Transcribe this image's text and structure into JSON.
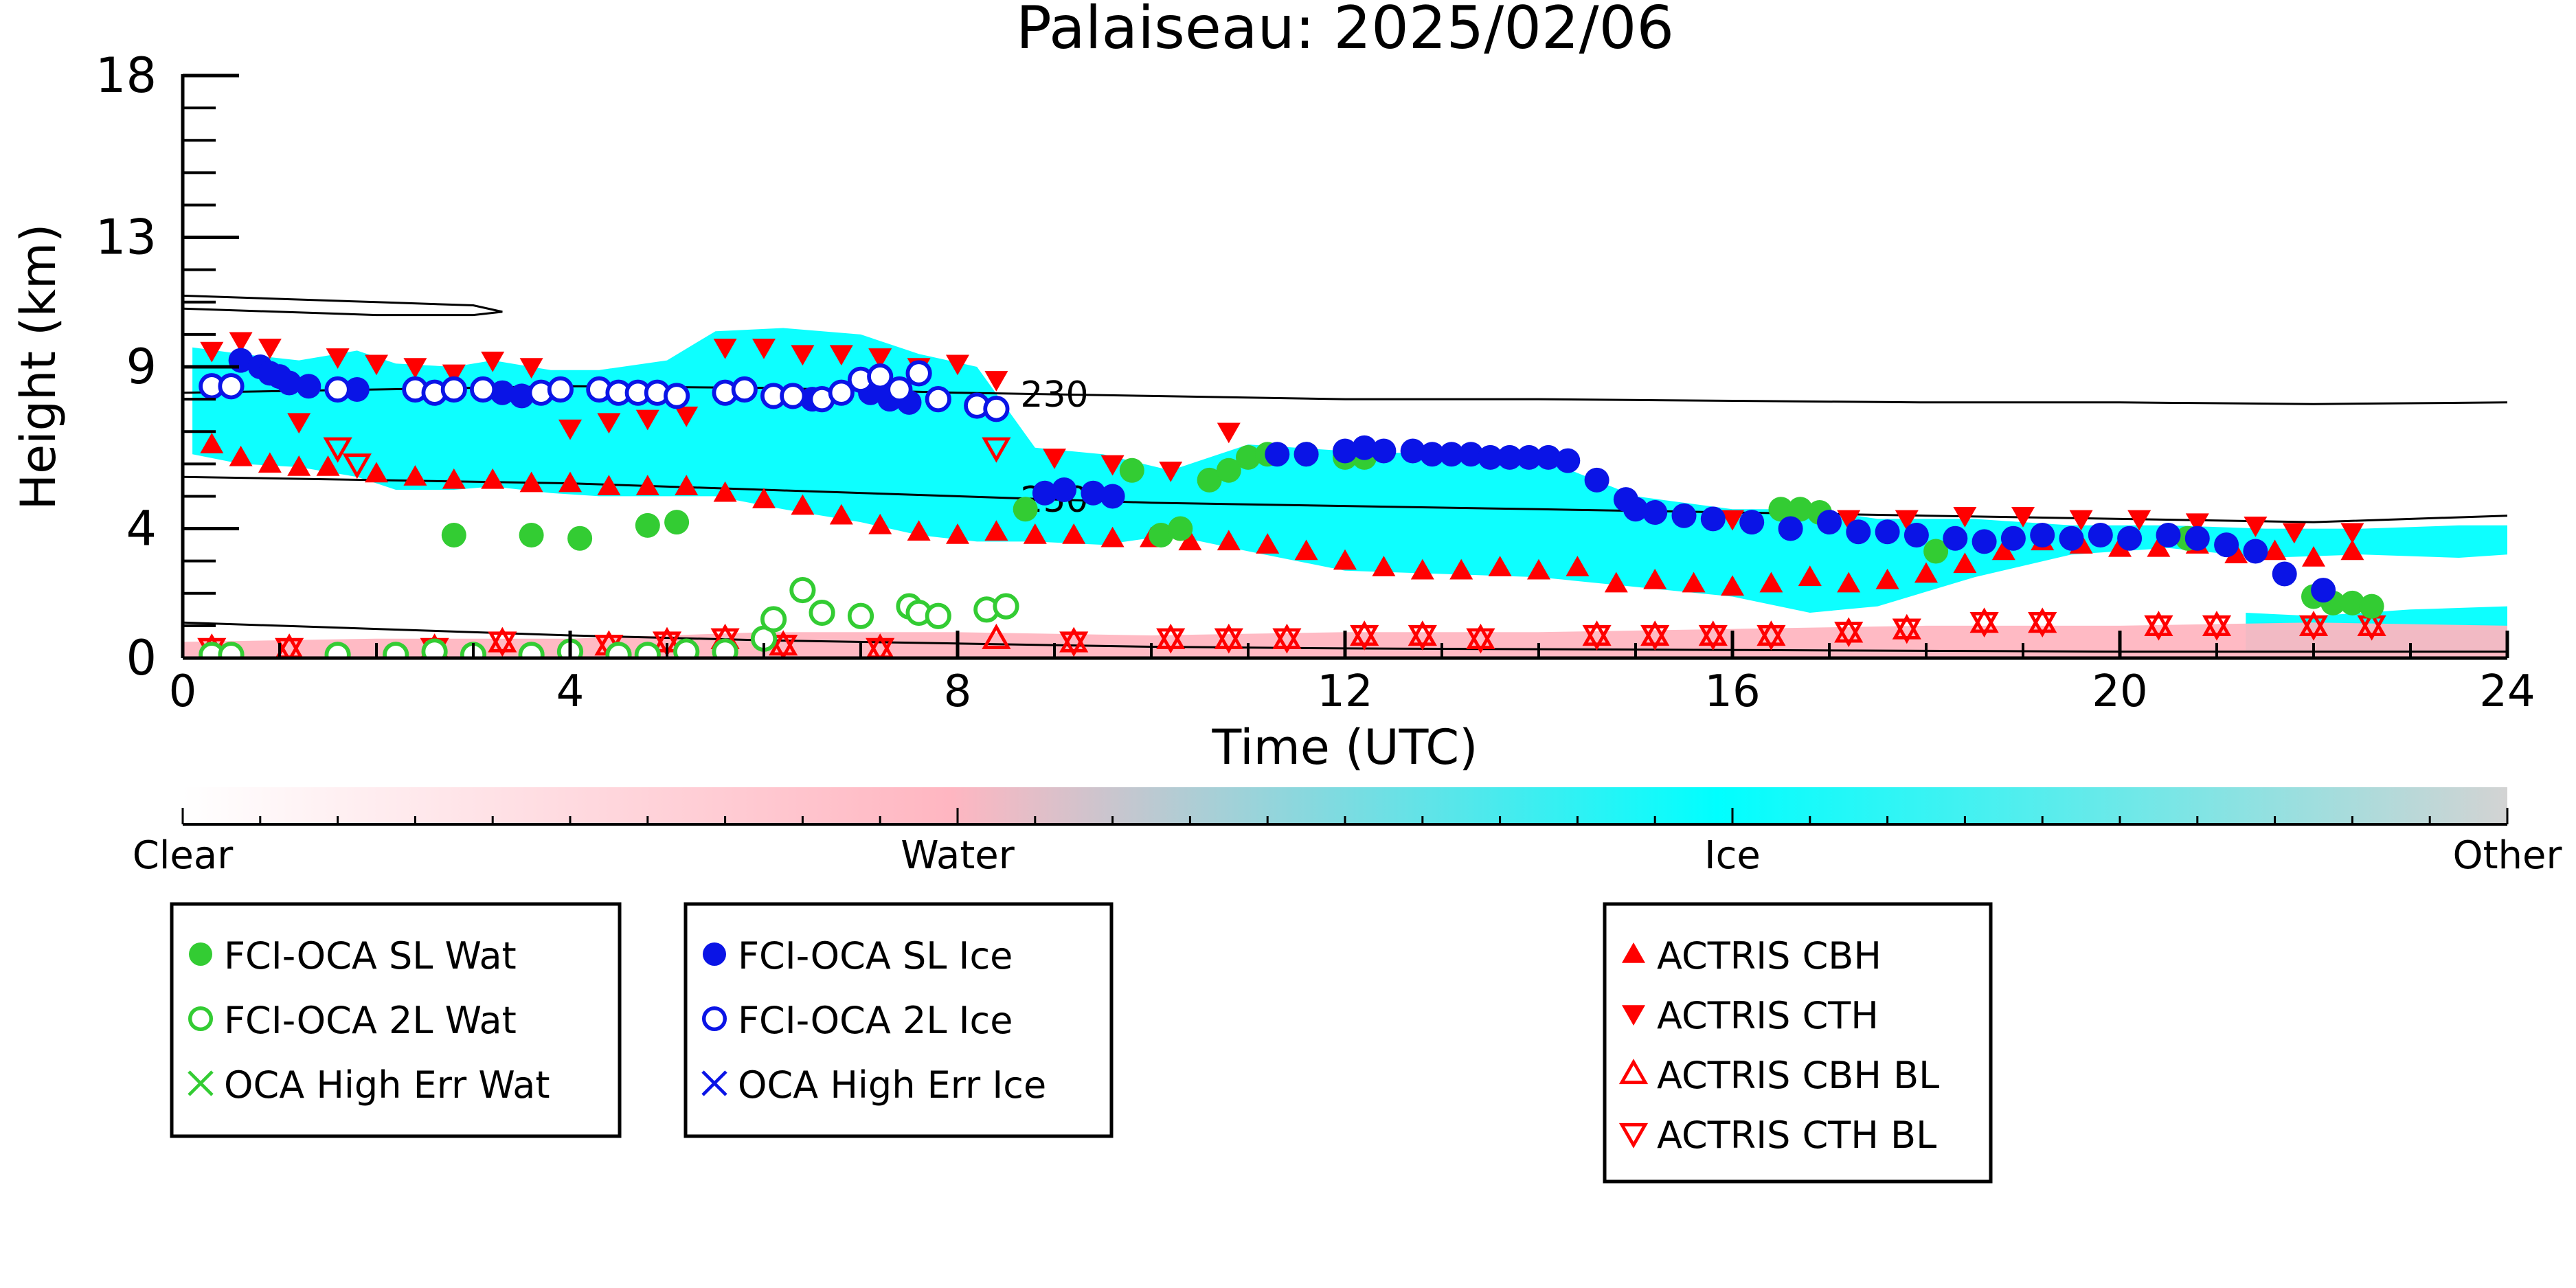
{
  "chart_data": {
    "type": "scatter",
    "title": "Palaiseau: 2025/02/06",
    "xlabel": "Time (UTC)",
    "ylabel": "Height (km)",
    "xlim": [
      0,
      24
    ],
    "ylim": [
      0,
      18
    ],
    "x_ticks": [
      0,
      4,
      8,
      12,
      16,
      20,
      24
    ],
    "y_ticks": [
      0,
      4,
      9,
      13,
      18
    ],
    "grid": false,
    "colorbar": {
      "labels": [
        "Clear",
        "Water",
        "Ice",
        "Other"
      ],
      "colors": [
        "#ffffff",
        "#ffb6c1",
        "#00ffff",
        "#d3d3d3"
      ]
    },
    "contours": [
      {
        "label": "230",
        "x": [
          0,
          2,
          4,
          6,
          8,
          10,
          12,
          14,
          16,
          18,
          20,
          22,
          24
        ],
        "y": [
          8.2,
          8.3,
          8.4,
          8.35,
          8.2,
          8.1,
          8.0,
          8.0,
          7.95,
          7.9,
          7.9,
          7.85,
          7.9
        ]
      },
      {
        "label": "250",
        "x": [
          0,
          2,
          4,
          6,
          8,
          10,
          12,
          14,
          16,
          18,
          20,
          22,
          24
        ],
        "y": [
          5.6,
          5.5,
          5.4,
          5.2,
          5.0,
          4.8,
          4.7,
          4.6,
          4.5,
          4.4,
          4.3,
          4.2,
          4.4
        ]
      },
      {
        "label": "",
        "x": [
          0,
          1,
          2,
          3,
          3.3,
          3,
          2,
          1,
          0
        ],
        "y": [
          11.2,
          11.1,
          11.0,
          10.9,
          10.7,
          10.6,
          10.6,
          10.7,
          10.8
        ]
      },
      {
        "label": "",
        "x": [
          0,
          2,
          4,
          6,
          8,
          10,
          12,
          16,
          20,
          24
        ],
        "y": [
          1.1,
          0.9,
          0.7,
          0.55,
          0.45,
          0.35,
          0.3,
          0.25,
          0.2,
          0.2
        ]
      }
    ],
    "cloud_regions": [
      {
        "phase": "Ice",
        "x": [
          0.1,
          0.6,
          1.2,
          1.8,
          2.2,
          2.8,
          3.2,
          3.8,
          4.3,
          5.0,
          5.5,
          6.2,
          7.0,
          7.6,
          8.2,
          8.8,
          9.5,
          10.2,
          11.0,
          12.0,
          13.0,
          14.0,
          15.0,
          16.0,
          16.8,
          17.5,
          18.5,
          19.5,
          20.5,
          21.5,
          22.5,
          23.5,
          24.0
        ],
        "top": [
          9.6,
          9.4,
          9.2,
          9.5,
          9.1,
          9.0,
          9.2,
          8.9,
          8.9,
          9.2,
          10.1,
          10.2,
          10.0,
          9.4,
          9.0,
          6.5,
          6.3,
          5.8,
          6.6,
          6.4,
          6.3,
          6.2,
          5.0,
          4.6,
          4.6,
          4.3,
          4.3,
          4.1,
          4.1,
          4.0,
          4.0,
          4.1,
          4.1
        ],
        "bottom": [
          6.3,
          6.0,
          5.9,
          5.6,
          5.2,
          5.2,
          5.3,
          5.1,
          5.0,
          5.0,
          5.0,
          4.6,
          4.2,
          3.8,
          3.6,
          3.6,
          3.5,
          3.8,
          3.3,
          2.7,
          2.6,
          2.5,
          2.2,
          1.9,
          1.4,
          1.6,
          2.5,
          3.2,
          3.4,
          3.1,
          3.2,
          3.1,
          3.2
        ]
      },
      {
        "phase": "Ice",
        "x": [
          21.3,
          22.0,
          23.0,
          24.0
        ],
        "top": [
          1.4,
          1.3,
          1.5,
          1.6
        ],
        "bottom": [
          0.2,
          0.2,
          0.2,
          0.2
        ]
      },
      {
        "phase": "Water",
        "x": [
          0.0,
          2.0,
          4.0,
          6.0,
          8.0,
          10.0,
          12.0,
          14.0,
          16.0,
          18.0,
          20.0,
          22.0,
          24.0
        ],
        "top": [
          0.5,
          0.6,
          0.6,
          0.8,
          0.8,
          0.7,
          0.8,
          0.8,
          0.9,
          1.0,
          1.0,
          1.1,
          1.0
        ],
        "bottom": [
          0.0,
          0.0,
          0.0,
          0.0,
          0.0,
          0.0,
          0.0,
          0.0,
          0.0,
          0.0,
          0.0,
          0.0,
          0.0
        ]
      }
    ],
    "series": [
      {
        "name": "FCI-OCA SL Wat",
        "marker": "circle-filled",
        "color": "#33cc33",
        "x": [
          2.8,
          3.6,
          4.1,
          4.8,
          5.1,
          8.7,
          9.8,
          10.1,
          10.3,
          10.6,
          10.8,
          11.0,
          11.2,
          11.6,
          12.0,
          12.2,
          16.5,
          16.7,
          16.9,
          18.1,
          20.7,
          22.0,
          22.2,
          22.4,
          22.6
        ],
        "y": [
          3.8,
          3.8,
          3.7,
          4.1,
          4.2,
          4.6,
          5.8,
          3.8,
          4.0,
          5.5,
          5.8,
          6.2,
          6.3,
          6.3,
          6.2,
          6.2,
          4.6,
          4.6,
          4.5,
          3.3,
          3.7,
          1.9,
          1.7,
          1.7,
          1.6
        ]
      },
      {
        "name": "FCI-OCA 2L Wat",
        "marker": "circle-open",
        "color": "#33cc33",
        "x": [
          0.3,
          0.5,
          1.6,
          2.2,
          2.6,
          3.0,
          3.6,
          4.0,
          4.5,
          4.8,
          5.2,
          5.6,
          6.0,
          6.1,
          6.4,
          6.6,
          7.0,
          7.5,
          7.6,
          7.8,
          8.3,
          8.5
        ],
        "y": [
          0.1,
          0.1,
          0.1,
          0.1,
          0.2,
          0.1,
          0.1,
          0.2,
          0.1,
          0.1,
          0.2,
          0.2,
          0.6,
          1.2,
          2.1,
          1.4,
          1.3,
          1.6,
          1.4,
          1.3,
          1.5,
          1.6
        ]
      },
      {
        "name": "OCA High Err Wat",
        "marker": "x",
        "color": "#33cc33",
        "x": [],
        "y": []
      },
      {
        "name": "FCI-OCA SL Ice",
        "marker": "circle-filled",
        "color": "#0a14e6",
        "x": [
          0.6,
          0.8,
          0.9,
          1.0,
          1.1,
          1.3,
          1.8,
          3.3,
          3.5,
          5.6,
          6.5,
          6.8,
          7.1,
          7.3,
          7.5,
          8.9,
          9.1,
          9.4,
          9.6,
          11.3,
          11.6,
          12.0,
          12.2,
          12.4,
          12.7,
          12.9,
          13.1,
          13.3,
          13.5,
          13.7,
          13.9,
          14.1,
          14.3,
          14.6,
          14.9,
          15.0,
          15.2,
          15.5,
          15.8,
          16.2,
          16.6,
          17.0,
          17.3,
          17.6,
          17.9,
          18.3,
          18.6,
          18.9,
          19.2,
          19.5,
          19.8,
          20.1,
          20.5,
          20.8,
          21.1,
          21.4,
          21.7,
          22.1
        ],
        "y": [
          9.2,
          9.0,
          8.8,
          8.7,
          8.5,
          8.4,
          8.3,
          8.2,
          8.1,
          8.2,
          8.0,
          8.2,
          8.2,
          8.0,
          7.9,
          5.1,
          5.2,
          5.1,
          5.0,
          6.3,
          6.3,
          6.4,
          6.5,
          6.4,
          6.4,
          6.3,
          6.3,
          6.3,
          6.2,
          6.2,
          6.2,
          6.2,
          6.1,
          5.5,
          4.9,
          4.6,
          4.5,
          4.4,
          4.3,
          4.2,
          4.0,
          4.2,
          3.9,
          3.9,
          3.8,
          3.7,
          3.6,
          3.7,
          3.8,
          3.7,
          3.8,
          3.7,
          3.8,
          3.7,
          3.5,
          3.3,
          2.6,
          2.1
        ]
      },
      {
        "name": "FCI-OCA 2L Ice",
        "marker": "circle-open",
        "color": "#0a14e6",
        "x": [
          0.3,
          0.5,
          1.6,
          2.4,
          2.6,
          2.8,
          3.1,
          3.7,
          3.9,
          4.3,
          4.5,
          4.7,
          4.9,
          5.1,
          5.6,
          5.8,
          6.1,
          6.3,
          6.6,
          6.8,
          7.0,
          7.2,
          7.4,
          7.6,
          7.8,
          8.2,
          8.4
        ],
        "y": [
          8.4,
          8.4,
          8.3,
          8.3,
          8.2,
          8.3,
          8.3,
          8.2,
          8.3,
          8.3,
          8.2,
          8.2,
          8.2,
          8.1,
          8.2,
          8.3,
          8.1,
          8.1,
          8.0,
          8.2,
          8.6,
          8.7,
          8.3,
          8.8,
          8.0,
          7.8,
          7.7
        ]
      },
      {
        "name": "OCA High Err Ice",
        "marker": "x",
        "color": "#0a14e6",
        "x": [],
        "y": []
      },
      {
        "name": "ACTRIS CBH",
        "marker": "triangle-up-filled",
        "color": "#ff0000",
        "x": [
          0.3,
          0.6,
          0.9,
          1.2,
          1.5,
          2.0,
          2.4,
          2.8,
          3.2,
          3.6,
          4.0,
          4.4,
          4.8,
          5.2,
          5.6,
          6.0,
          6.4,
          6.8,
          7.2,
          7.6,
          8.0,
          8.4,
          8.8,
          9.2,
          9.6,
          10.0,
          10.4,
          10.8,
          11.2,
          11.6,
          12.0,
          12.4,
          12.8,
          13.2,
          13.6,
          14.0,
          14.4,
          14.8,
          15.2,
          15.6,
          16.0,
          16.4,
          16.8,
          17.2,
          17.6,
          18.0,
          18.4,
          18.8,
          19.2,
          19.6,
          20.0,
          20.4,
          20.8,
          21.2,
          21.6,
          22.0,
          22.4
        ],
        "y": [
          6.6,
          6.2,
          6.0,
          5.9,
          5.9,
          5.7,
          5.6,
          5.5,
          5.5,
          5.4,
          5.4,
          5.3,
          5.3,
          5.3,
          5.1,
          4.9,
          4.7,
          4.4,
          4.1,
          3.9,
          3.8,
          3.9,
          3.8,
          3.8,
          3.7,
          3.7,
          3.6,
          3.6,
          3.5,
          3.3,
          3.0,
          2.8,
          2.7,
          2.7,
          2.8,
          2.7,
          2.8,
          2.3,
          2.4,
          2.3,
          2.2,
          2.3,
          2.5,
          2.3,
          2.4,
          2.6,
          2.9,
          3.3,
          3.6,
          3.5,
          3.4,
          3.4,
          3.5,
          3.2,
          3.3,
          3.1,
          3.3
        ]
      },
      {
        "name": "ACTRIS CTH",
        "marker": "triangle-down-filled",
        "color": "#ff0000",
        "x": [
          0.3,
          0.6,
          0.9,
          1.2,
          1.6,
          2.0,
          2.4,
          2.8,
          3.2,
          3.6,
          4.0,
          4.4,
          4.8,
          5.2,
          5.6,
          6.0,
          6.4,
          6.8,
          7.2,
          7.6,
          8.0,
          8.4,
          9.0,
          9.6,
          10.2,
          10.8,
          16.0,
          16.6,
          17.2,
          17.8,
          18.4,
          19.0,
          19.6,
          20.2,
          20.8,
          21.4,
          21.8,
          22.4
        ],
        "y": [
          9.5,
          9.8,
          9.6,
          7.3,
          9.3,
          9.1,
          9.0,
          8.8,
          9.2,
          9.0,
          7.1,
          7.3,
          7.4,
          7.5,
          9.6,
          9.6,
          9.4,
          9.4,
          9.3,
          9.0,
          9.1,
          8.6,
          6.2,
          6.0,
          5.8,
          7.0,
          4.3,
          4.2,
          4.3,
          4.3,
          4.4,
          4.4,
          4.3,
          4.3,
          4.2,
          4.1,
          3.9,
          3.9
        ]
      },
      {
        "name": "ACTRIS CBH BL",
        "marker": "triangle-up-open",
        "color": "#ff0000",
        "x": [
          0.3,
          1.1,
          2.6,
          3.3,
          4.4,
          5.0,
          5.6,
          6.2,
          7.2,
          8.4,
          9.2,
          10.2,
          10.8,
          11.4,
          12.2,
          12.8,
          13.4,
          14.6,
          15.2,
          15.8,
          16.4,
          17.2,
          17.8,
          18.6,
          19.2,
          20.4,
          21.0,
          22.0,
          22.6
        ],
        "y": [
          0.3,
          0.3,
          0.3,
          0.5,
          0.4,
          0.5,
          0.6,
          0.4,
          0.3,
          0.6,
          0.5,
          0.6,
          0.6,
          0.6,
          0.7,
          0.7,
          0.6,
          0.7,
          0.7,
          0.7,
          0.7,
          0.8,
          0.9,
          1.1,
          1.1,
          1.0,
          1.0,
          1.0,
          1.0
        ]
      },
      {
        "name": "ACTRIS CTH BL",
        "marker": "triangle-down-open",
        "color": "#ff0000",
        "x": [
          0.3,
          1.1,
          1.6,
          1.8,
          2.6,
          3.3,
          4.4,
          5.0,
          5.6,
          6.2,
          7.2,
          8.4,
          9.2,
          10.2,
          10.8,
          11.4,
          12.2,
          12.8,
          13.4,
          14.6,
          15.2,
          15.8,
          16.4,
          17.2,
          17.8,
          18.6,
          19.2,
          20.4,
          21.0,
          22.0,
          22.6
        ],
        "y": [
          0.3,
          0.3,
          6.5,
          6.0,
          0.3,
          0.5,
          0.4,
          0.5,
          0.6,
          0.4,
          0.3,
          6.5,
          0.5,
          0.6,
          0.6,
          0.6,
          0.7,
          0.7,
          0.6,
          0.7,
          0.7,
          0.7,
          0.7,
          0.8,
          0.9,
          1.1,
          1.1,
          1.0,
          1.0,
          1.0,
          1.0
        ]
      }
    ],
    "legend_groups": [
      [
        "FCI-OCA SL Wat",
        "FCI-OCA 2L Wat",
        "OCA High Err Wat"
      ],
      [
        "FCI-OCA SL Ice",
        "FCI-OCA 2L Ice",
        "OCA High Err Ice"
      ],
      [
        "ACTRIS CBH",
        "ACTRIS CTH",
        "ACTRIS CBH BL",
        "ACTRIS CTH BL"
      ]
    ]
  }
}
